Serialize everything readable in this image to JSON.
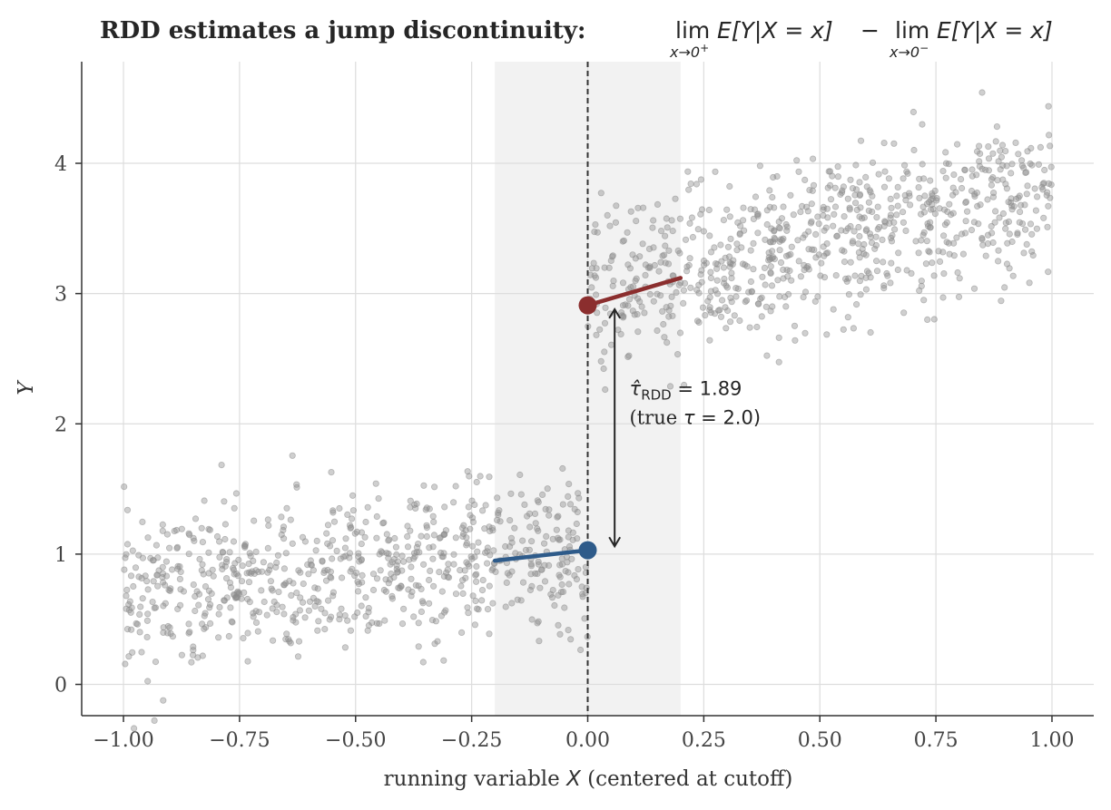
{
  "chart_data": {
    "type": "scatter",
    "title_prefix": "RDD estimates a jump discontinuity:",
    "title_formula": {
      "op": "lim",
      "expr": "E[Y|X = x]",
      "minus": "−",
      "sub_plus_var": "x→0",
      "sub_plus_sup": "+",
      "sub_minus_var": "x→0",
      "sub_minus_sup": "−"
    },
    "xlabel_prefix": "running variable ",
    "xlabel_var": "X",
    "xlabel_suffix": " (centered at cutoff)",
    "ylabel": "Y",
    "xlim": [
      -1.09,
      1.09
    ],
    "ylim": [
      -0.24,
      4.78
    ],
    "xticks": [
      -1.0,
      -0.75,
      -0.5,
      -0.25,
      0.0,
      0.25,
      0.5,
      0.75,
      1.0
    ],
    "xtick_labels": [
      "−1.00",
      "−0.75",
      "−0.50",
      "−0.25",
      "0.00",
      "0.25",
      "0.50",
      "0.75",
      "1.00"
    ],
    "yticks": [
      0,
      1,
      2,
      3,
      4
    ],
    "ytick_labels": [
      "0",
      "1",
      "2",
      "3",
      "4"
    ],
    "grid": true,
    "cutoff": 0.0,
    "bandwidth": [
      -0.2,
      0.2
    ],
    "scatter": {
      "n_points": 1500,
      "left": {
        "x_range": [
          -1.0,
          0.0
        ],
        "intercept": 1.0,
        "slope": 0.3,
        "noise_sd": 0.3
      },
      "right": {
        "x_range": [
          0.0,
          1.0
        ],
        "intercept": 3.0,
        "slope": 0.8,
        "noise_sd": 0.3
      }
    },
    "fit_left": {
      "x": [
        -0.2,
        0.0
      ],
      "y": [
        0.95,
        1.03
      ]
    },
    "fit_right": {
      "x": [
        0.0,
        0.2
      ],
      "y": [
        2.91,
        3.12
      ]
    },
    "limit_left": {
      "x": 0.0,
      "y": 1.03
    },
    "limit_right": {
      "x": 0.0,
      "y": 2.91
    },
    "jump_arrow": {
      "x": 0.058,
      "y_from": 1.06,
      "y_to": 2.88
    },
    "annotation": {
      "x": 0.09,
      "y_line1": 2.22,
      "y_line2": 2.0,
      "tau_symbol": "τ̂",
      "tau_sub": "RDD",
      "equals_value": " = 1.89",
      "line2_prefix": "(true ",
      "line2_tau": "τ",
      "line2_value": " = 2.0)"
    },
    "colors": {
      "scatter": "#8c8c8c",
      "fit_left": "#2e5b8a",
      "fit_right": "#8b2e2e",
      "cutoff_line": "#333333",
      "bandwidth_shade": "#f2f2f2",
      "grid": "#dddddd",
      "axis": "#333333"
    }
  }
}
